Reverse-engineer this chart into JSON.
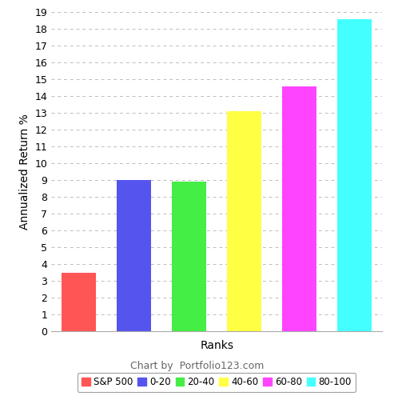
{
  "categories": [
    "S&P 500",
    "0-20",
    "20-40",
    "40-60",
    "60-80",
    "80-100"
  ],
  "values": [
    3.5,
    9.0,
    8.9,
    13.1,
    14.6,
    18.6
  ],
  "bar_colors": [
    "#ff5555",
    "#5555ee",
    "#44ee44",
    "#ffff44",
    "#ff44ff",
    "#44ffff"
  ],
  "xlabel": "Ranks",
  "ylabel": "Annualized Return %",
  "ylim": [
    0,
    19
  ],
  "yticks": [
    0,
    1,
    2,
    3,
    4,
    5,
    6,
    7,
    8,
    9,
    10,
    11,
    12,
    13,
    14,
    15,
    16,
    17,
    18,
    19
  ],
  "legend_labels": [
    "S&P 500",
    "0-20",
    "20-40",
    "40-60",
    "60-80",
    "80-100"
  ],
  "legend_colors": [
    "#ff5555",
    "#5555ee",
    "#44ee44",
    "#ffff44",
    "#ff44ff",
    "#44ffff"
  ],
  "footer_text": "Chart by ⓢ Portfolio123.com",
  "background_color": "#ffffff",
  "grid_color": "#bbbbbb",
  "axis_fontsize": 10,
  "tick_fontsize": 9,
  "legend_fontsize": 8.5
}
